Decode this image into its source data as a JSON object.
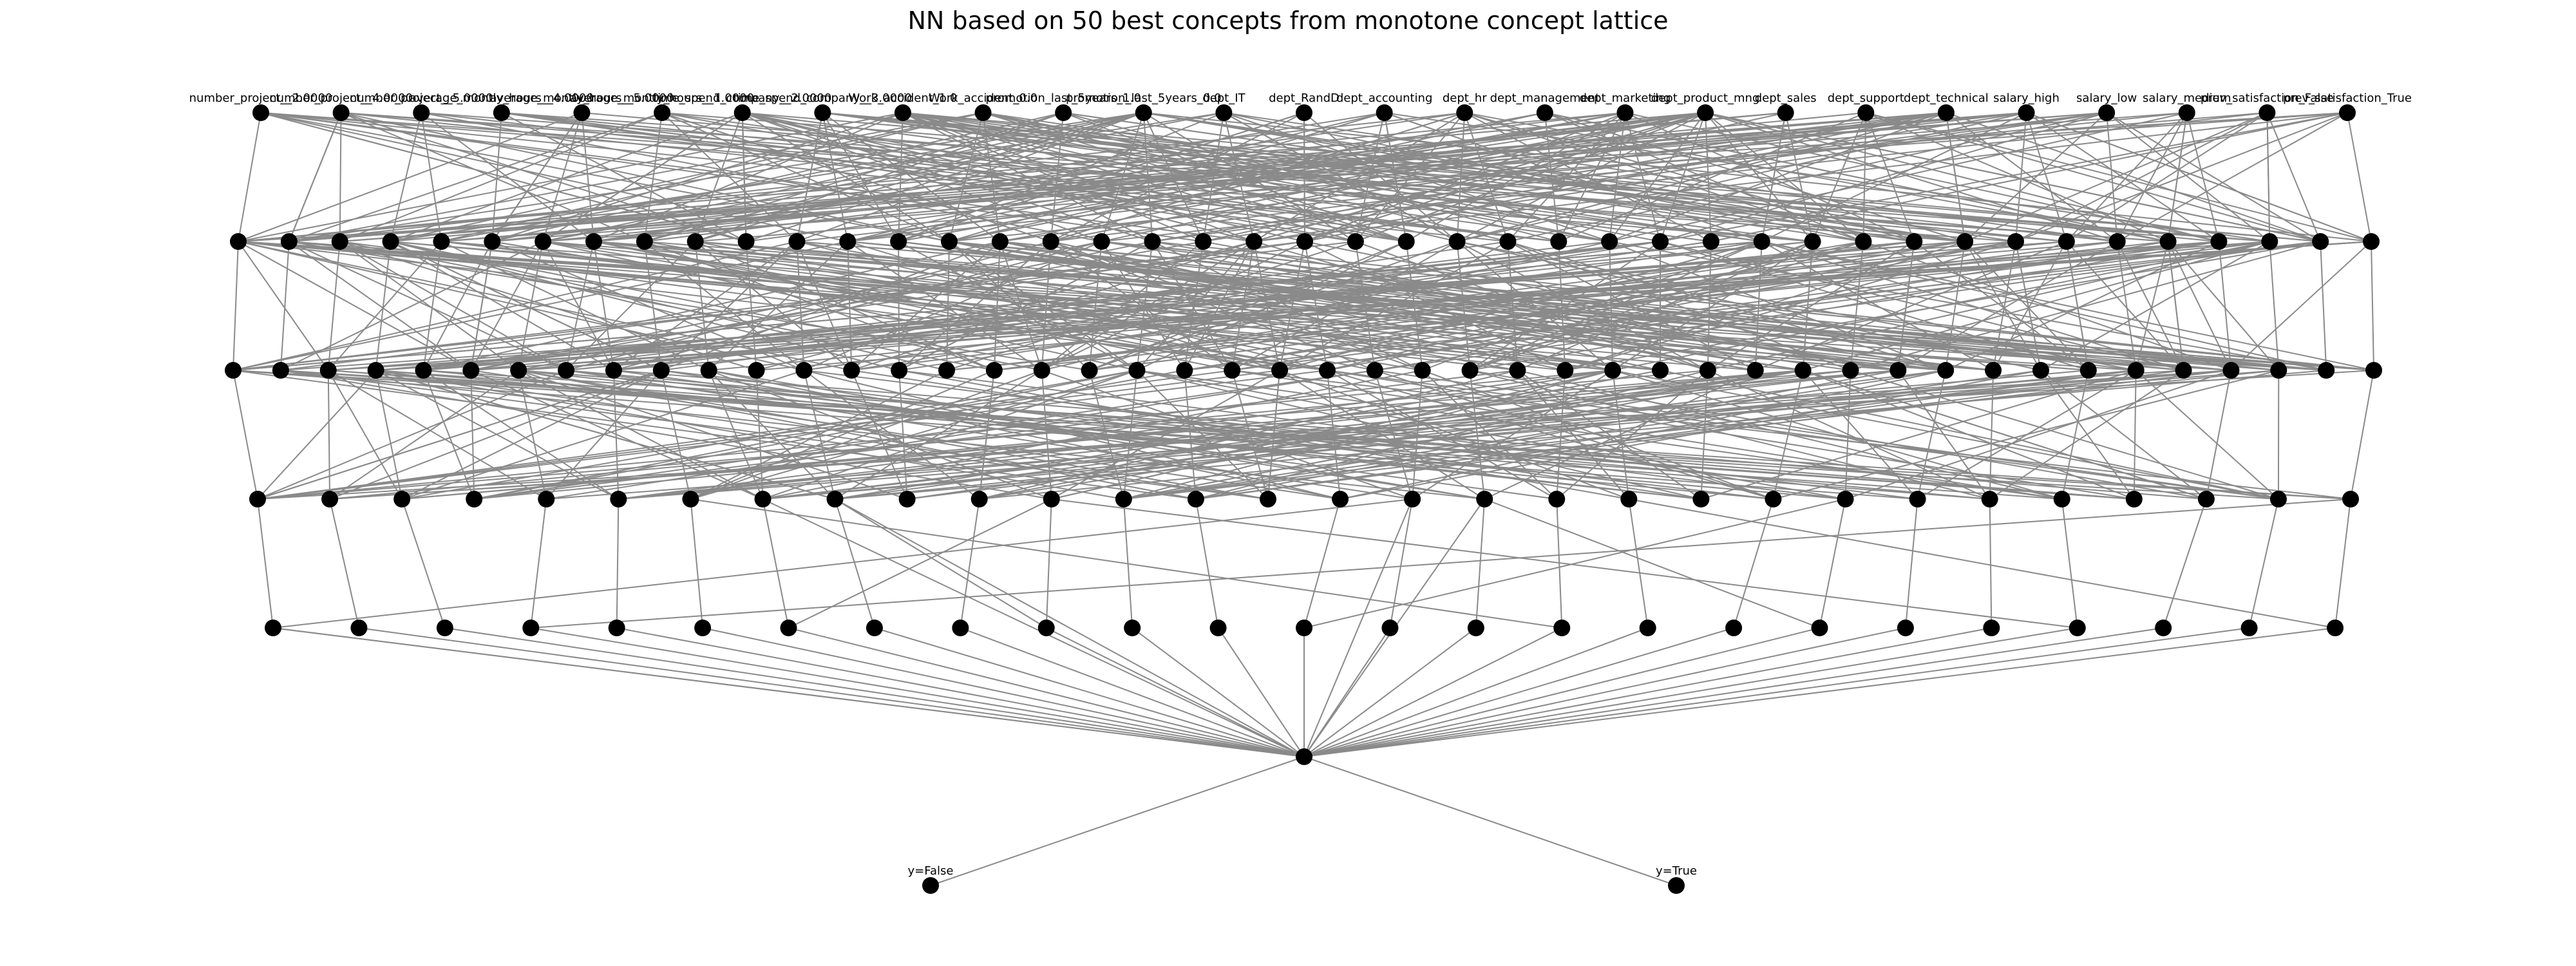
{
  "title": "NN based on 50 best concepts from monotone concept lattice",
  "input_labels": [
    "number_project__2.0000",
    "number_project__4.0000",
    "number_project__5.0000",
    "average_montly_hours__4.0000",
    "average_montly_hours__5.0000",
    "average_montly_hours__1.0000",
    "time_spend_company__2.0000",
    "time_spend_company__3.0000",
    "Work_accident_1.0",
    "Work_accident_0.0",
    "promotion_last_5years_1.0",
    "promotion_last_5years_0.0",
    "dept_IT",
    "dept_RandD",
    "dept_accounting",
    "dept_hr",
    "dept_management",
    "dept_marketing",
    "dept_product_mng",
    "dept_sales",
    "dept_support",
    "dept_technical",
    "salary_high",
    "salary_low",
    "salary_medium",
    "prev_satisfaction_False",
    "prev_satisfaction_True"
  ],
  "output_labels": [
    "y=False",
    "y=True"
  ],
  "layer_sizes": [
    27,
    43,
    46,
    30,
    25,
    1,
    2
  ]
}
